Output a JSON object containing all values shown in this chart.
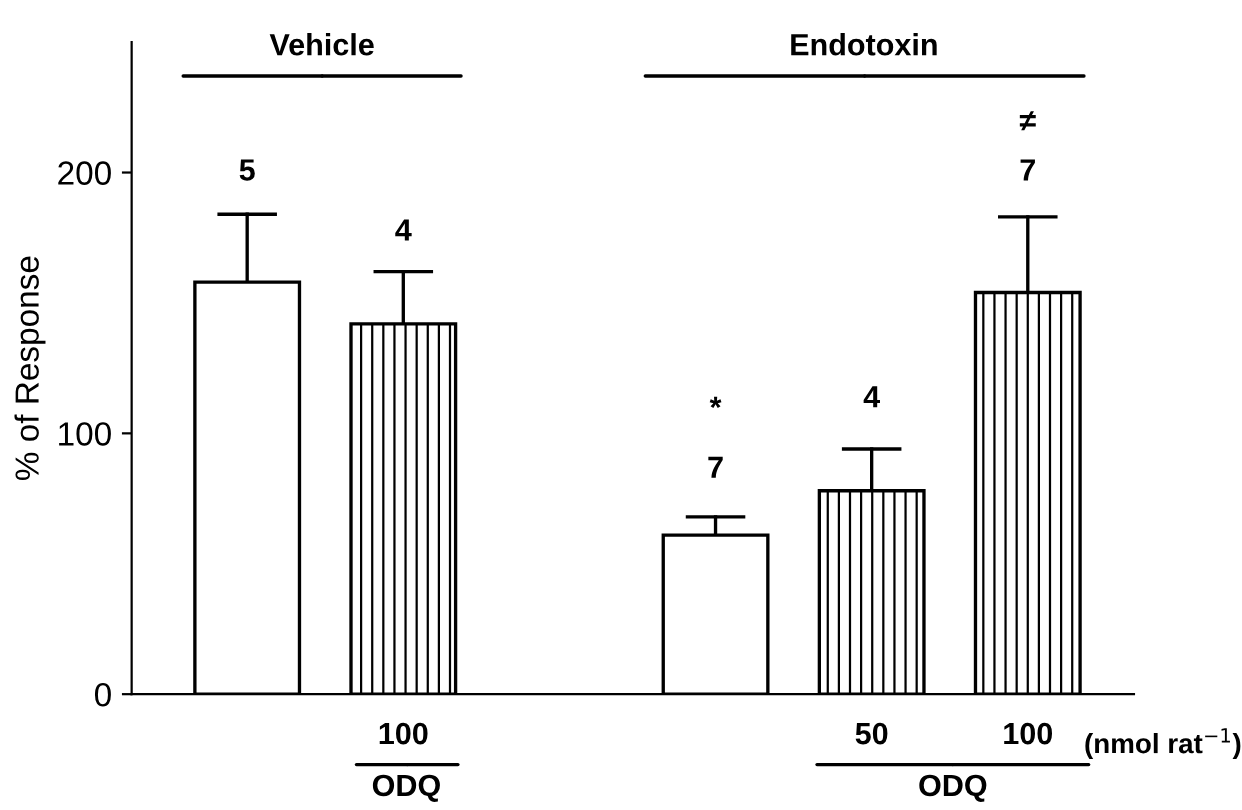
{
  "chart_data": {
    "type": "bar",
    "categories": [
      null,
      "100",
      null,
      null,
      "50",
      "100"
    ],
    "series": [
      {
        "color": "#ffffff",
        "values": [
          158,
          null,
          null,
          61,
          null,
          null
        ],
        "errors": [
          [
            158,
            184
          ],
          null,
          null,
          [
            61,
            68
          ],
          null,
          null
        ]
      },
      {
        "color": "#ffffff",
        "values": [
          null,
          142,
          null,
          null,
          78,
          154
        ],
        "errors": [
          null,
          [
            142,
            162
          ],
          null,
          null,
          [
            78,
            94
          ],
          [
            154,
            183
          ]
        ]
      }
    ],
    "ylabel": "% of Response",
    "ylim": [
      0,
      250
    ],
    "yticks": [
      0,
      100,
      200
    ],
    "annotations": [
      "5",
      "4",
      "7",
      "4",
      "7",
      "*",
      "≠",
      "Vehicle",
      "Endotoxin",
      "ODQ",
      "ODQ",
      "(nmol rat$^{−1}$)"
    ],
    "grid": false,
    "legend": false
  }
}
